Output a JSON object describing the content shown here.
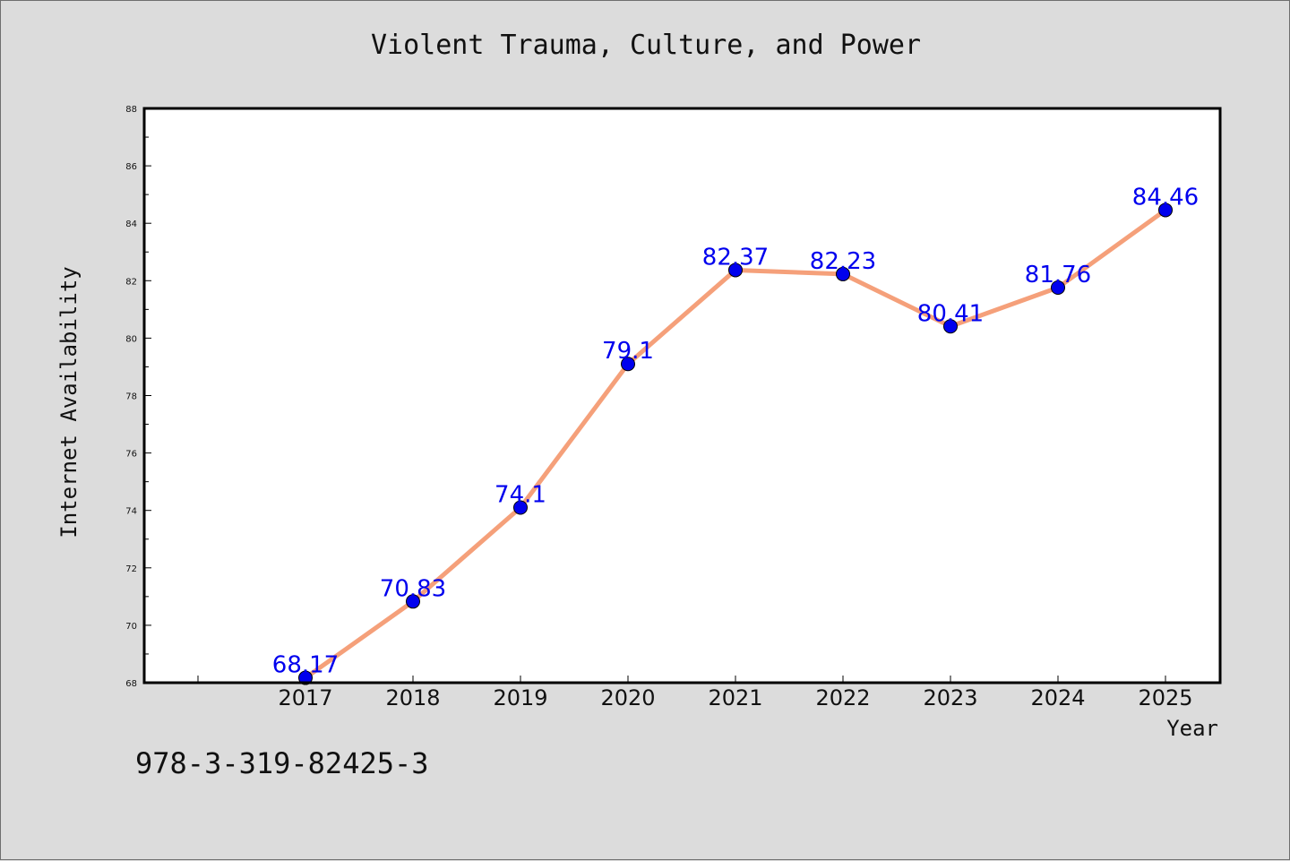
{
  "chart_data": {
    "type": "line",
    "title": "Violent Trauma, Culture, and Power",
    "xlabel": "Year",
    "ylabel": "Internet Availability",
    "categories": [
      "2017",
      "2018",
      "2019",
      "2020",
      "2021",
      "2022",
      "2023",
      "2024",
      "2025"
    ],
    "values": [
      68.17,
      70.83,
      74.1,
      79.1,
      82.37,
      82.23,
      80.41,
      81.76,
      84.46
    ],
    "data_labels": [
      "68.17",
      "70.83",
      "74.1",
      "79.1",
      "82.37",
      "82.23",
      "80.41",
      "81.76",
      "84.46"
    ],
    "ylim": [
      68,
      88
    ],
    "yticks": [
      68,
      70,
      72,
      74,
      76,
      78,
      80,
      82,
      84,
      86,
      88
    ],
    "grid": false,
    "line_color": "#f5a07a",
    "marker_color": "#0000ee",
    "label_color": "#0000ee"
  },
  "footer": {
    "isbn": "978-3-319-82425-3"
  }
}
